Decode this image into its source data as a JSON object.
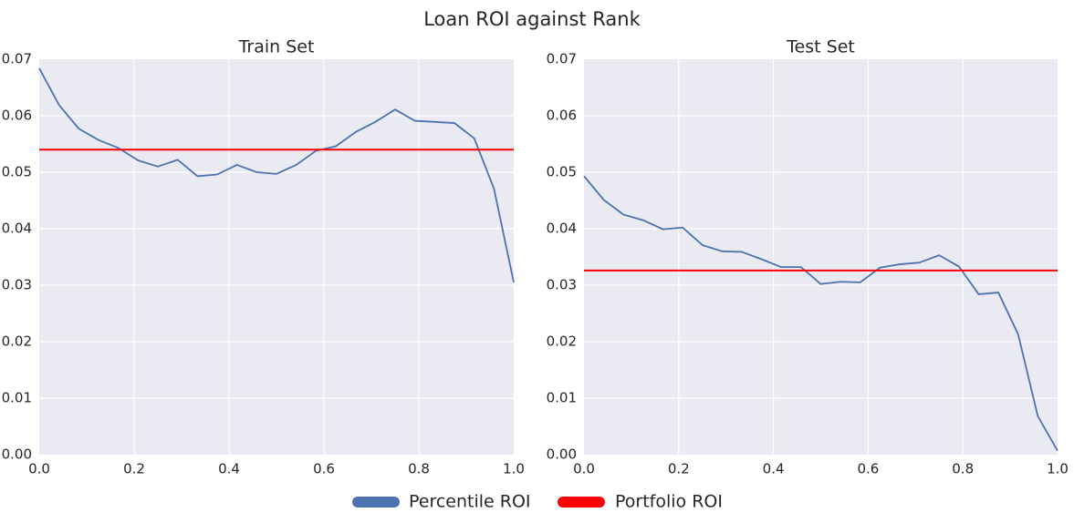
{
  "suptitle": "Loan ROI against Rank",
  "colors": {
    "percentile": "#4C72B0",
    "portfolio": "#FF0000",
    "axes_bg": "#EAEAF2",
    "grid": "#FFFFFF"
  },
  "legend": {
    "placement": "bottom-center",
    "items": [
      {
        "label": "Percentile ROI",
        "color": "#4C72B0"
      },
      {
        "label": "Portfolio ROI",
        "color": "#FF0000"
      }
    ]
  },
  "chart_data": [
    {
      "type": "line",
      "title": "Train Set",
      "xlabel": "",
      "ylabel": "",
      "xlim": [
        0.0,
        1.0
      ],
      "ylim": [
        0.0,
        0.07
      ],
      "xticks": [
        "0.0",
        "0.2",
        "0.4",
        "0.6",
        "0.8",
        "1.0"
      ],
      "yticks": [
        "0.00",
        "0.01",
        "0.02",
        "0.03",
        "0.04",
        "0.05",
        "0.06",
        "0.07"
      ],
      "grid": true,
      "series": [
        {
          "name": "Percentile ROI",
          "x": [
            0.0,
            0.0417,
            0.0833,
            0.125,
            0.1667,
            0.2083,
            0.25,
            0.2917,
            0.3333,
            0.375,
            0.4167,
            0.4583,
            0.5,
            0.5417,
            0.5833,
            0.625,
            0.6667,
            0.7083,
            0.75,
            0.7917,
            0.8333,
            0.875,
            0.9167,
            0.9583,
            1.0
          ],
          "y": [
            0.0684,
            0.0619,
            0.0577,
            0.0557,
            0.0543,
            0.0521,
            0.051,
            0.0522,
            0.0493,
            0.0496,
            0.0513,
            0.05,
            0.0497,
            0.0513,
            0.0538,
            0.0546,
            0.0571,
            0.0589,
            0.0611,
            0.0591,
            0.0589,
            0.0587,
            0.056,
            0.0471,
            0.0305
          ]
        },
        {
          "name": "Portfolio ROI",
          "y_const": 0.054
        }
      ]
    },
    {
      "type": "line",
      "title": "Test Set",
      "xlabel": "",
      "ylabel": "",
      "xlim": [
        0.0,
        1.0
      ],
      "ylim": [
        0.0,
        0.07
      ],
      "xticks": [
        "0.0",
        "0.2",
        "0.4",
        "0.6",
        "0.8",
        "1.0"
      ],
      "yticks": [
        "0.00",
        "0.01",
        "0.02",
        "0.03",
        "0.04",
        "0.05",
        "0.06",
        "0.07"
      ],
      "grid": true,
      "series": [
        {
          "name": "Percentile ROI",
          "x": [
            0.0,
            0.0417,
            0.0833,
            0.125,
            0.1667,
            0.2083,
            0.25,
            0.2917,
            0.3333,
            0.375,
            0.4167,
            0.4583,
            0.5,
            0.5417,
            0.5833,
            0.625,
            0.6667,
            0.7083,
            0.75,
            0.7917,
            0.8333,
            0.875,
            0.9167,
            0.9583,
            1.0
          ],
          "y": [
            0.0493,
            0.0451,
            0.0425,
            0.0415,
            0.0399,
            0.0402,
            0.0371,
            0.036,
            0.0359,
            0.0346,
            0.0332,
            0.0332,
            0.0302,
            0.0306,
            0.0305,
            0.0331,
            0.0337,
            0.034,
            0.0353,
            0.0333,
            0.0284,
            0.0287,
            0.0213,
            0.0068,
            0.0007
          ]
        },
        {
          "name": "Portfolio ROI",
          "y_const": 0.0326
        }
      ]
    }
  ]
}
